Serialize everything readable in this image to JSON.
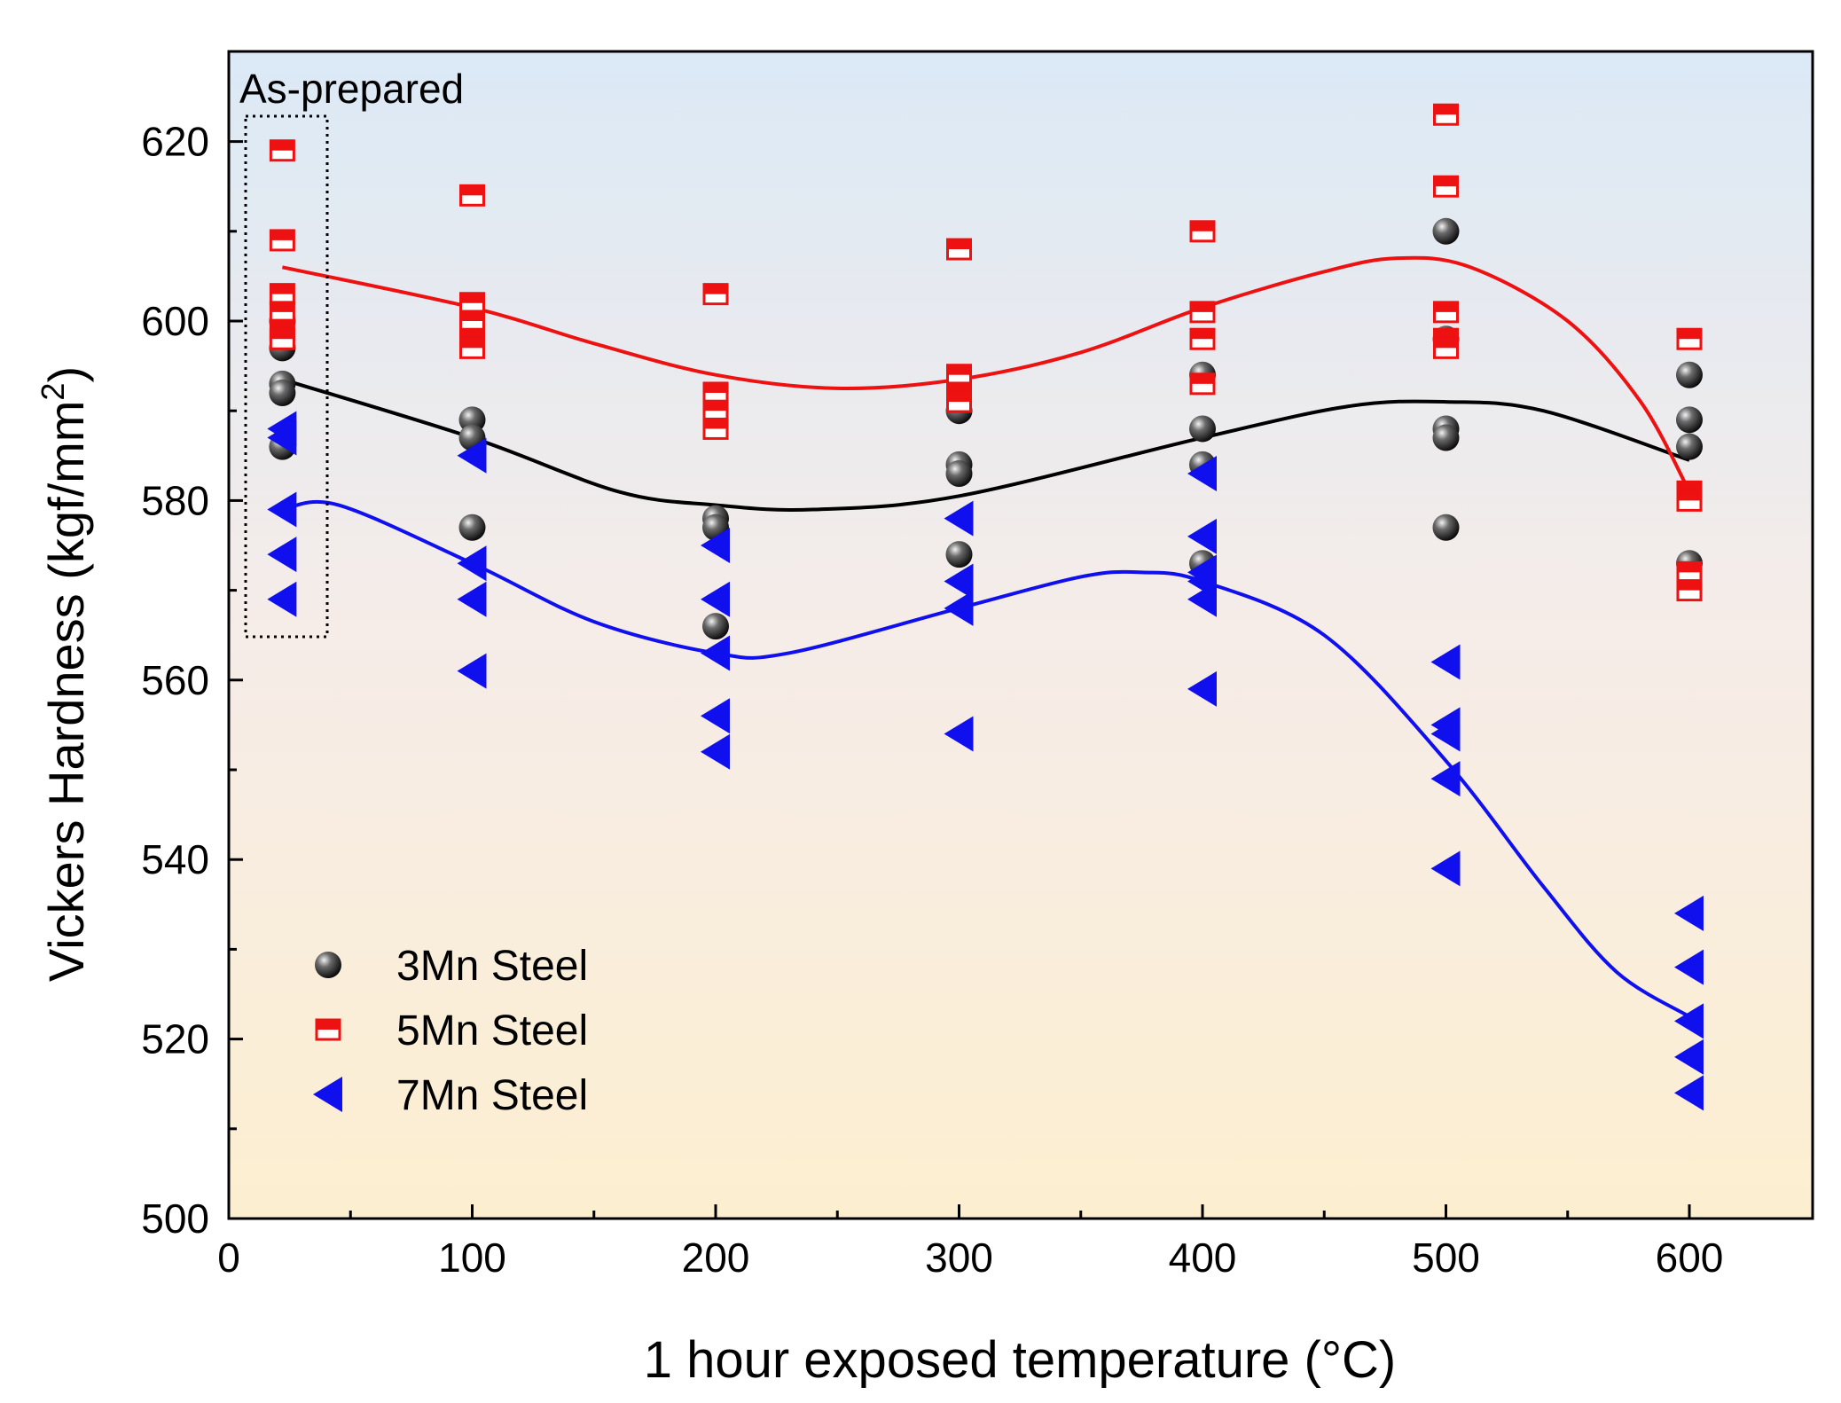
{
  "chart_data": {
    "type": "scatter",
    "title": "",
    "xlabel": "1 hour exposed temperature (°C)",
    "ylabel_main": "Vickers Hardness (kgf/mm",
    "ylabel_sup": "2",
    "ylabel_close": ")",
    "xlim": [
      0,
      650
    ],
    "ylim": [
      500,
      630
    ],
    "xticks": [
      0,
      100,
      200,
      300,
      400,
      500,
      600
    ],
    "yticks": [
      500,
      520,
      540,
      560,
      580,
      600,
      620
    ],
    "grid": false,
    "legend_position": "bottom-left",
    "annotation": "As-prepared",
    "series": [
      {
        "name": "3Mn Steel",
        "marker": "sphere",
        "color": "#000000",
        "points": [
          [
            22,
            600
          ],
          [
            22,
            597
          ],
          [
            22,
            593
          ],
          [
            22,
            592
          ],
          [
            22,
            586
          ],
          [
            100,
            589
          ],
          [
            100,
            587
          ],
          [
            100,
            577
          ],
          [
            200,
            578
          ],
          [
            200,
            577
          ],
          [
            200,
            566
          ],
          [
            300,
            590
          ],
          [
            300,
            584
          ],
          [
            300,
            583
          ],
          [
            300,
            574
          ],
          [
            400,
            594
          ],
          [
            400,
            588
          ],
          [
            400,
            584
          ],
          [
            400,
            573
          ],
          [
            500,
            610
          ],
          [
            500,
            598
          ],
          [
            500,
            588
          ],
          [
            500,
            587
          ],
          [
            500,
            577
          ],
          [
            600,
            594
          ],
          [
            600,
            589
          ],
          [
            600,
            586
          ],
          [
            600,
            573
          ]
        ],
        "fit": [
          [
            22,
            593.5
          ],
          [
            100,
            587
          ],
          [
            160,
            581
          ],
          [
            200,
            579.5
          ],
          [
            240,
            579
          ],
          [
            300,
            580.5
          ],
          [
            400,
            587
          ],
          [
            460,
            590.5
          ],
          [
            500,
            591
          ],
          [
            540,
            590
          ],
          [
            600,
            584.5
          ]
        ]
      },
      {
        "name": "5Mn Steel",
        "marker": "half-filled-square",
        "color": "#ee1111",
        "points": [
          [
            22,
            619
          ],
          [
            22,
            609
          ],
          [
            22,
            603
          ],
          [
            22,
            601
          ],
          [
            22,
            599
          ],
          [
            22,
            598
          ],
          [
            100,
            614
          ],
          [
            100,
            602
          ],
          [
            100,
            600
          ],
          [
            100,
            598
          ],
          [
            100,
            597
          ],
          [
            200,
            603
          ],
          [
            200,
            592
          ],
          [
            200,
            590
          ],
          [
            200,
            588
          ],
          [
            300,
            608
          ],
          [
            300,
            594
          ],
          [
            300,
            592
          ],
          [
            300,
            591
          ],
          [
            400,
            610
          ],
          [
            400,
            601
          ],
          [
            400,
            598
          ],
          [
            400,
            593
          ],
          [
            500,
            623
          ],
          [
            500,
            615
          ],
          [
            500,
            601
          ],
          [
            500,
            598
          ],
          [
            500,
            597
          ],
          [
            600,
            598
          ],
          [
            600,
            581
          ],
          [
            600,
            580
          ],
          [
            600,
            572
          ],
          [
            600,
            570
          ]
        ],
        "fit": [
          [
            22,
            606
          ],
          [
            100,
            601.5
          ],
          [
            150,
            597.5
          ],
          [
            200,
            594
          ],
          [
            250,
            592.5
          ],
          [
            300,
            593.5
          ],
          [
            350,
            596.5
          ],
          [
            400,
            601.5
          ],
          [
            450,
            605.5
          ],
          [
            480,
            607
          ],
          [
            510,
            606
          ],
          [
            550,
            600
          ],
          [
            580,
            591
          ],
          [
            600,
            581
          ]
        ]
      },
      {
        "name": "7Mn Steel",
        "marker": "left-triangle",
        "color": "#1010ee",
        "points": [
          [
            22,
            588
          ],
          [
            22,
            587
          ],
          [
            22,
            579
          ],
          [
            22,
            574
          ],
          [
            22,
            569
          ],
          [
            100,
            585
          ],
          [
            100,
            573
          ],
          [
            100,
            569
          ],
          [
            100,
            561
          ],
          [
            200,
            575
          ],
          [
            200,
            569
          ],
          [
            200,
            563
          ],
          [
            200,
            556
          ],
          [
            200,
            552
          ],
          [
            300,
            578
          ],
          [
            300,
            571
          ],
          [
            300,
            568
          ],
          [
            300,
            554
          ],
          [
            400,
            583
          ],
          [
            400,
            576
          ],
          [
            400,
            572
          ],
          [
            400,
            571
          ],
          [
            400,
            569
          ],
          [
            400,
            559
          ],
          [
            500,
            562
          ],
          [
            500,
            555
          ],
          [
            500,
            554
          ],
          [
            500,
            549
          ],
          [
            500,
            539
          ],
          [
            600,
            534
          ],
          [
            600,
            528
          ],
          [
            600,
            522
          ],
          [
            600,
            518
          ],
          [
            600,
            514
          ]
        ],
        "fit": [
          [
            22,
            579
          ],
          [
            45,
            579.5
          ],
          [
            100,
            573
          ],
          [
            150,
            566.5
          ],
          [
            200,
            563
          ],
          [
            230,
            563
          ],
          [
            300,
            568
          ],
          [
            350,
            571.5
          ],
          [
            375,
            572
          ],
          [
            400,
            571
          ],
          [
            450,
            565
          ],
          [
            500,
            551
          ],
          [
            540,
            537
          ],
          [
            570,
            527.5
          ],
          [
            600,
            522.5
          ]
        ]
      }
    ]
  }
}
